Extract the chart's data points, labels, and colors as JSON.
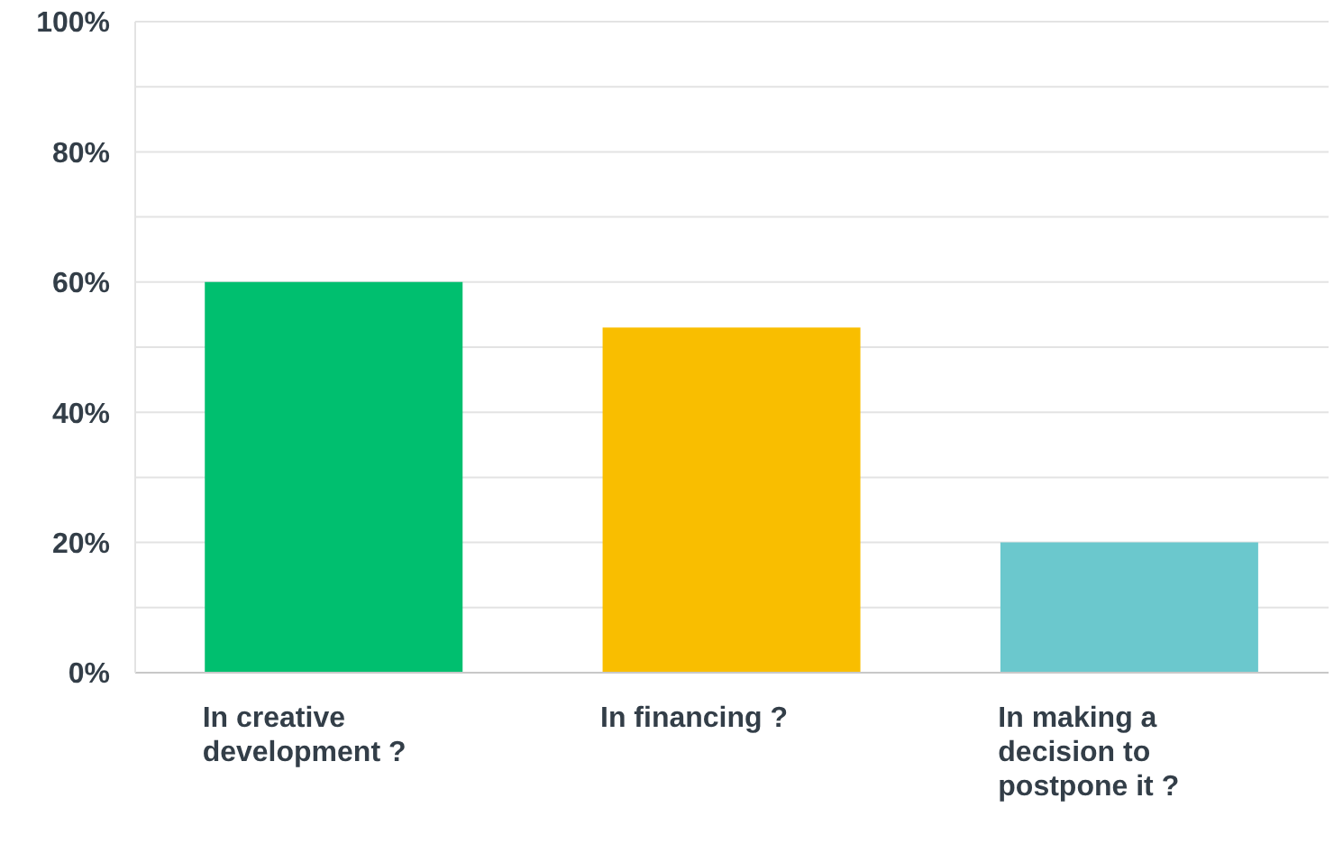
{
  "chart_data": {
    "type": "bar",
    "categories": [
      "In creative development ?",
      "In financing ?",
      "In making a decision to postpone it ?"
    ],
    "values": [
      60,
      53,
      20
    ],
    "colors": [
      "#00bf6f",
      "#f9be00",
      "#6bc8cd"
    ],
    "ylim": [
      0,
      100
    ],
    "yticks": [
      {
        "value": 0,
        "label": "0%"
      },
      {
        "value": 10,
        "label": null
      },
      {
        "value": 20,
        "label": "20%"
      },
      {
        "value": 30,
        "label": null
      },
      {
        "value": 40,
        "label": "40%"
      },
      {
        "value": 50,
        "label": null
      },
      {
        "value": 60,
        "label": "60%"
      },
      {
        "value": 70,
        "label": null
      },
      {
        "value": 80,
        "label": "80%"
      },
      {
        "value": 90,
        "label": null
      },
      {
        "value": 100,
        "label": "100%"
      }
    ],
    "grid": "y",
    "legend": false
  }
}
